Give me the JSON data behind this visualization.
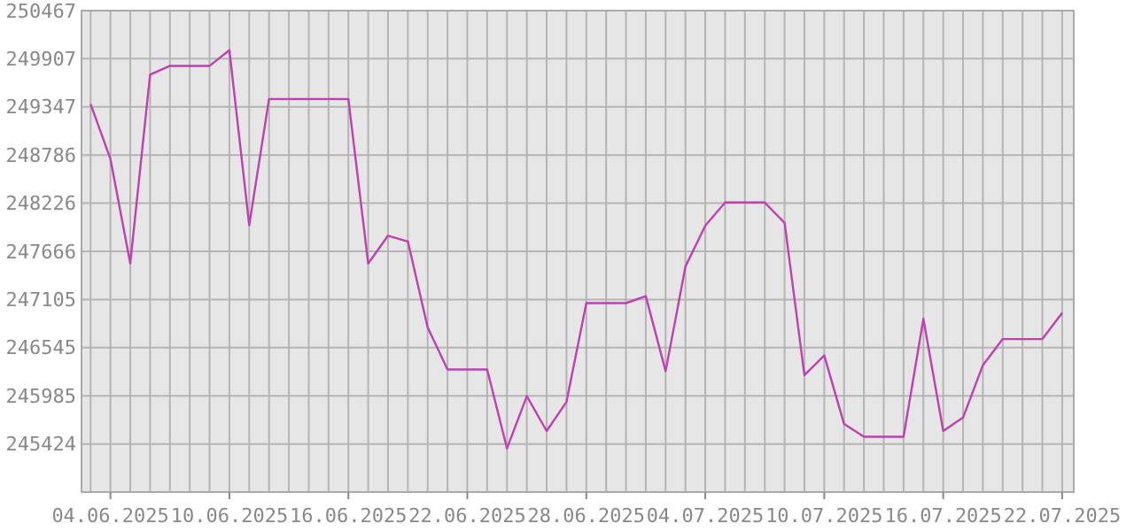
{
  "chart_data": {
    "type": "line",
    "x": [
      "2025-06-03",
      "2025-06-04",
      "2025-06-05",
      "2025-06-06",
      "2025-06-07",
      "2025-06-08",
      "2025-06-09",
      "2025-06-10",
      "2025-06-11",
      "2025-06-12",
      "2025-06-13",
      "2025-06-14",
      "2025-06-15",
      "2025-06-16",
      "2025-06-17",
      "2025-06-18",
      "2025-06-19",
      "2025-06-20",
      "2025-06-21",
      "2025-06-22",
      "2025-06-23",
      "2025-06-24",
      "2025-06-25",
      "2025-06-26",
      "2025-06-27",
      "2025-06-28",
      "2025-06-29",
      "2025-06-30",
      "2025-07-01",
      "2025-07-02",
      "2025-07-03",
      "2025-07-04",
      "2025-07-05",
      "2025-07-06",
      "2025-07-07",
      "2025-07-08",
      "2025-07-09",
      "2025-07-10",
      "2025-07-11",
      "2025-07-12",
      "2025-07-13",
      "2025-07-14",
      "2025-07-15",
      "2025-07-16",
      "2025-07-17",
      "2025-07-18",
      "2025-07-19",
      "2025-07-20",
      "2025-07-21",
      "2025-07-22"
    ],
    "series": [
      {
        "color": "#c040b0",
        "values": [
          249380,
          248742,
          247524,
          249722,
          249824,
          249824,
          249824,
          250006,
          247970,
          249438,
          249438,
          249438,
          249438,
          249438,
          247524,
          247848,
          247781,
          246779,
          246291,
          246291,
          246291,
          245372,
          245981,
          245575,
          245914,
          247063,
          247063,
          247063,
          247144,
          246271,
          247489,
          247964,
          248234,
          248234,
          248234,
          247997,
          246224,
          246454,
          245656,
          245508,
          245508,
          245508,
          246880,
          245575,
          245731,
          246340,
          246645,
          246645,
          246645,
          246949
        ]
      }
    ],
    "xlim": [
      "2025-06-02T13:00",
      "2025-07-22T14:00"
    ],
    "xticks": [
      {
        "value": "2025-06-03",
        "label": null
      },
      {
        "value": "2025-06-04",
        "label": "04.06.2025"
      },
      {
        "value": "2025-06-05",
        "label": null
      },
      {
        "value": "2025-06-06",
        "label": null
      },
      {
        "value": "2025-06-07",
        "label": null
      },
      {
        "value": "2025-06-08",
        "label": null
      },
      {
        "value": "2025-06-09",
        "label": null
      },
      {
        "value": "2025-06-10",
        "label": "10.06.2025"
      },
      {
        "value": "2025-06-11",
        "label": null
      },
      {
        "value": "2025-06-12",
        "label": null
      },
      {
        "value": "2025-06-13",
        "label": null
      },
      {
        "value": "2025-06-14",
        "label": null
      },
      {
        "value": "2025-06-15",
        "label": null
      },
      {
        "value": "2025-06-16",
        "label": "16.06.2025"
      },
      {
        "value": "2025-06-17",
        "label": null
      },
      {
        "value": "2025-06-18",
        "label": null
      },
      {
        "value": "2025-06-19",
        "label": null
      },
      {
        "value": "2025-06-20",
        "label": null
      },
      {
        "value": "2025-06-21",
        "label": null
      },
      {
        "value": "2025-06-22",
        "label": "22.06.2025"
      },
      {
        "value": "2025-06-23",
        "label": null
      },
      {
        "value": "2025-06-24",
        "label": null
      },
      {
        "value": "2025-06-25",
        "label": null
      },
      {
        "value": "2025-06-26",
        "label": null
      },
      {
        "value": "2025-06-27",
        "label": null
      },
      {
        "value": "2025-06-28",
        "label": "28.06.2025"
      },
      {
        "value": "2025-06-29",
        "label": null
      },
      {
        "value": "2025-06-30",
        "label": null
      },
      {
        "value": "2025-07-01",
        "label": null
      },
      {
        "value": "2025-07-02",
        "label": null
      },
      {
        "value": "2025-07-03",
        "label": null
      },
      {
        "value": "2025-07-04",
        "label": "04.07.2025"
      },
      {
        "value": "2025-07-05",
        "label": null
      },
      {
        "value": "2025-07-06",
        "label": null
      },
      {
        "value": "2025-07-07",
        "label": null
      },
      {
        "value": "2025-07-08",
        "label": null
      },
      {
        "value": "2025-07-09",
        "label": null
      },
      {
        "value": "2025-07-10",
        "label": "10.07.2025"
      },
      {
        "value": "2025-07-11",
        "label": null
      },
      {
        "value": "2025-07-12",
        "label": null
      },
      {
        "value": "2025-07-13",
        "label": null
      },
      {
        "value": "2025-07-14",
        "label": null
      },
      {
        "value": "2025-07-15",
        "label": null
      },
      {
        "value": "2025-07-16",
        "label": "16.07.2025"
      },
      {
        "value": "2025-07-17",
        "label": null
      },
      {
        "value": "2025-07-18",
        "label": null
      },
      {
        "value": "2025-07-19",
        "label": null
      },
      {
        "value": "2025-07-20",
        "label": null
      },
      {
        "value": "2025-07-21",
        "label": null
      },
      {
        "value": "2025-07-22",
        "label": "22.07.2025"
      }
    ],
    "ylim": [
      244864,
      250467
    ],
    "yticks": [
      245424,
      245985,
      246545,
      247105,
      247666,
      248226,
      248786,
      249347,
      249907,
      250467
    ],
    "grid": true
  }
}
